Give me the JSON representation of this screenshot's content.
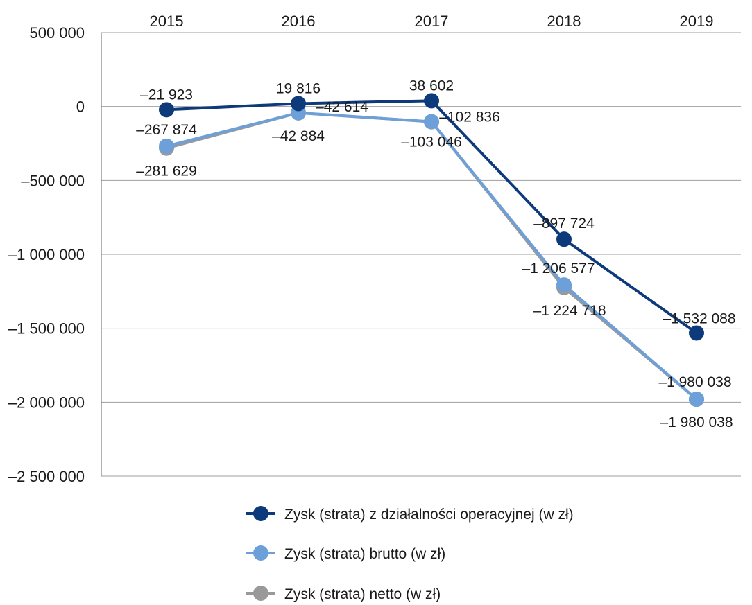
{
  "chart_data": {
    "type": "line",
    "x": [
      "2015",
      "2016",
      "2017",
      "2018",
      "2019"
    ],
    "ylim": [
      -2500000,
      500000
    ],
    "yticks": [
      500000,
      0,
      -500000,
      -1000000,
      -1500000,
      -2000000,
      -2500000
    ],
    "ytick_labels": [
      "500 000",
      "0",
      "–500 000",
      "–1 000 000",
      "–1 500 000",
      "–2 000 000",
      "–2 500 000"
    ],
    "xaxis_position": "top",
    "grid": true,
    "legend_position": "bottom",
    "series": [
      {
        "name": "Zysk (strata) z działalności operacyjnej (w zł)",
        "color": "#0d3a7a",
        "values": [
          -21923,
          19816,
          38602,
          -897724,
          -1532088
        ],
        "labels": [
          "–21 923",
          "19 816",
          "38 602",
          "–897 724",
          "–1 532 088"
        ]
      },
      {
        "name": "Zysk (strata) brutto (w zł)",
        "color": "#6d9fd8",
        "values": [
          -267874,
          -42614,
          -102836,
          -1206577,
          -1980038
        ],
        "labels": [
          "–267 874",
          "–42 614",
          "–102 836",
          "–1 206 577",
          "–1 980 038"
        ]
      },
      {
        "name": "Zysk (strata) netto (w zł)",
        "color": "#999999",
        "values": [
          -281629,
          -42884,
          -103046,
          -1224718,
          -1980038
        ],
        "labels": [
          "–281 629",
          "–42 884",
          "–103 046",
          "–1 224 718",
          "–1 980 038"
        ]
      }
    ]
  }
}
